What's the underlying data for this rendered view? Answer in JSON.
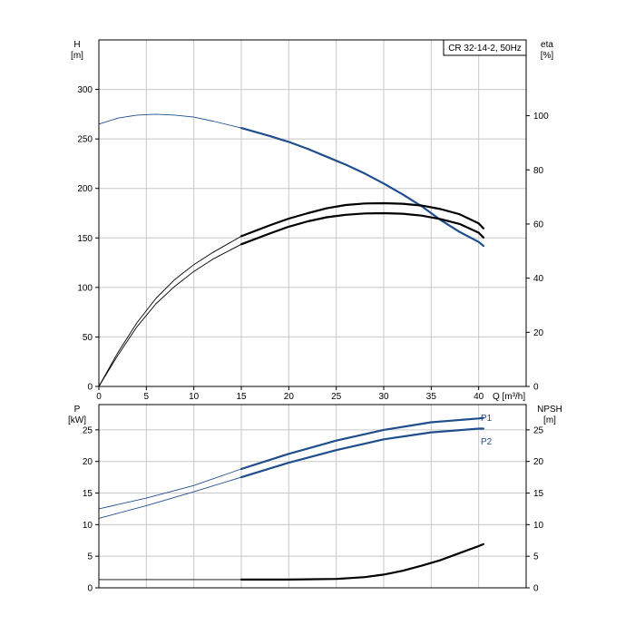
{
  "chart_data": [
    {
      "type": "line",
      "title": "CR 32-14-2, 50Hz",
      "xlabel": "Q [m³/h]",
      "ylabel_left": [
        "H",
        "[m]"
      ],
      "ylabel_right": [
        "eta",
        "[%]"
      ],
      "xlim": [
        0,
        45
      ],
      "ylim_left": [
        0,
        350
      ],
      "ylim_right": [
        0,
        128
      ],
      "xticks": [
        "0",
        "5",
        "10",
        "15",
        "20",
        "25",
        "30",
        "35",
        "40"
      ],
      "yticks_left": [
        "0",
        "50",
        "100",
        "150",
        "200",
        "250",
        "300"
      ],
      "yticks_right": [
        "0",
        "20",
        "40",
        "60",
        "80",
        "100"
      ],
      "grid": true,
      "series": [
        {
          "axis": "left",
          "color": "#1f4e8c",
          "x": [
            0,
            2,
            4,
            6,
            8,
            10,
            12,
            15,
            18,
            20,
            22,
            24,
            26,
            28,
            30,
            32,
            34,
            36,
            38,
            40,
            40.5
          ],
          "y": [
            265,
            271,
            274,
            275,
            274,
            272,
            268,
            261,
            253,
            247,
            240,
            232,
            224,
            215,
            205,
            194,
            182,
            168,
            156,
            146,
            142
          ]
        },
        {
          "axis": "right",
          "color": "#000000",
          "x": [
            0,
            2,
            4,
            6,
            8,
            10,
            12,
            15,
            18,
            20,
            22,
            24,
            26,
            28,
            30,
            32,
            34,
            36,
            38,
            40,
            40.5
          ],
          "y": [
            0,
            12.5,
            23.5,
            32.5,
            39.5,
            45,
            49.5,
            55.5,
            59.5,
            62,
            64,
            65.8,
            67,
            67.6,
            67.7,
            67.5,
            66.8,
            65.5,
            63.6,
            60.2,
            58.4
          ]
        },
        {
          "axis": "right",
          "color": "#000000",
          "x": [
            0,
            2,
            4,
            6,
            8,
            10,
            12,
            15,
            18,
            20,
            22,
            24,
            26,
            28,
            30,
            32,
            34,
            36,
            38,
            40,
            40.5
          ],
          "y": [
            0,
            11.5,
            22,
            30.5,
            37,
            42.5,
            47,
            52.5,
            56.5,
            59,
            61,
            62.5,
            63.4,
            63.9,
            64,
            63.8,
            63.1,
            61.8,
            60,
            56.8,
            55
          ]
        }
      ]
    },
    {
      "type": "line",
      "xlabel": "",
      "ylabel_left": [
        "P",
        "[kW]"
      ],
      "ylabel_right": [
        "NPSH",
        "[m]"
      ],
      "xlim": [
        0,
        45
      ],
      "ylim_left": [
        0,
        29
      ],
      "ylim_right": [
        0,
        29
      ],
      "yticks_left": [
        "0",
        "5",
        "10",
        "15",
        "20",
        "25"
      ],
      "yticks_right": [
        "0",
        "5",
        "10",
        "15",
        "20",
        "25"
      ],
      "grid": true,
      "series": [
        {
          "name": "P1",
          "axis": "left",
          "color": "#1f4e8c",
          "x": [
            0,
            5,
            10,
            15,
            20,
            25,
            30,
            35,
            40,
            40.5
          ],
          "y": [
            12.5,
            14.2,
            16.2,
            18.8,
            21.2,
            23.3,
            25,
            26.2,
            26.8,
            26.9
          ]
        },
        {
          "name": "P2",
          "axis": "left",
          "color": "#1f4e8c",
          "x": [
            0,
            5,
            10,
            15,
            20,
            25,
            30,
            35,
            40,
            40.5
          ],
          "y": [
            11,
            13,
            15.2,
            17.5,
            19.8,
            21.8,
            23.5,
            24.6,
            25.2,
            25.2
          ]
        },
        {
          "axis": "right",
          "color": "#000000",
          "x": [
            0,
            5,
            10,
            15,
            20,
            25,
            28,
            30,
            32,
            34,
            36,
            38,
            40,
            40.5
          ],
          "y": [
            1.3,
            1.3,
            1.3,
            1.3,
            1.3,
            1.4,
            1.7,
            2.1,
            2.7,
            3.5,
            4.4,
            5.5,
            6.6,
            6.9
          ]
        }
      ]
    }
  ]
}
